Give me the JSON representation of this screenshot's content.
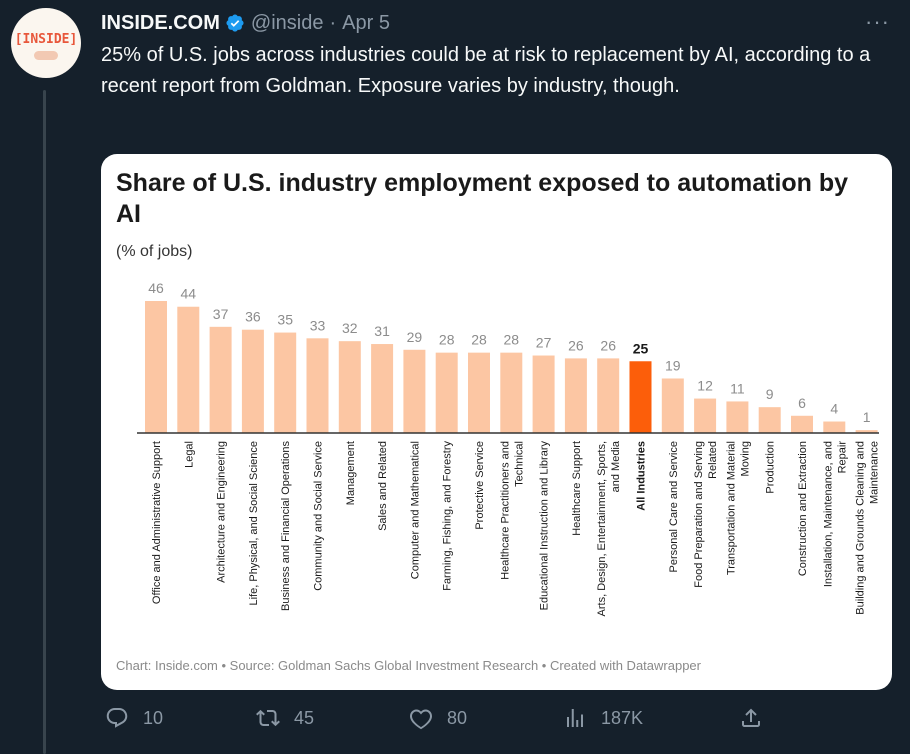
{
  "tweet": {
    "author_name": "INSIDE.COM",
    "handle": "@inside",
    "separator": "·",
    "date": "Apr 5",
    "avatar_text": "[INSIDE]",
    "more_label": "···",
    "text": "25% of U.S. jobs across industries could be at risk to replacement by AI, according to a recent report from Goldman. Exposure varies by industry, though."
  },
  "chart_data": {
    "type": "bar",
    "title": "Share of U.S. industry employment exposed to automation by AI",
    "subtitle": "(% of jobs)",
    "footer": "Chart: Inside.com • Source: Goldman Sachs Global Investment Research • Created with Datawrapper",
    "categories": [
      [
        "Office and Administrative Support"
      ],
      [
        "Legal"
      ],
      [
        "Architecture and Engineering"
      ],
      [
        "Life, Physical, and Social Science"
      ],
      [
        "Business and Financial Operations"
      ],
      [
        "Community and Social Service"
      ],
      [
        "Management"
      ],
      [
        "Sales and Related"
      ],
      [
        "Computer and Mathematical"
      ],
      [
        "Farming, Fishing, and Forestry"
      ],
      [
        "Protective Service"
      ],
      [
        "Healthcare Practitioners and",
        "Technical"
      ],
      [
        "Educational Instruction and Library"
      ],
      [
        "Healthcare Support"
      ],
      [
        "Arts, Design, Entertainment, Sports,",
        "and Media"
      ],
      [
        "All Industries"
      ],
      [
        "Personal Care and Service"
      ],
      [
        "Food Preparation and Serving",
        "Related"
      ],
      [
        "Transportation and Material",
        "Moving"
      ],
      [
        "Production"
      ],
      [
        "Construction and Extraction"
      ],
      [
        "Installation, Maintenance, and",
        "Repair"
      ],
      [
        "Building and Grounds Cleaning and",
        "Maintenance"
      ]
    ],
    "values": [
      46,
      44,
      37,
      36,
      35,
      33,
      32,
      31,
      29,
      28,
      28,
      28,
      27,
      26,
      26,
      25,
      19,
      12,
      11,
      9,
      6,
      4,
      1
    ],
    "highlight_index": 15,
    "ylim": [
      0,
      46
    ],
    "colors": {
      "bar": "#fcc6a3",
      "highlight": "#fc5e0a",
      "value_label": "#8c8c8c",
      "highlight_label": "#1a1a1a",
      "category_label": "#1a1a1a"
    }
  },
  "actions": {
    "replies": {
      "icon": "reply-icon",
      "count": "10"
    },
    "retweets": {
      "icon": "retweet-icon",
      "count": "45"
    },
    "likes": {
      "icon": "heart-icon",
      "count": "80"
    },
    "views": {
      "icon": "views-icon",
      "count": "187K"
    },
    "share": {
      "icon": "share-icon"
    }
  }
}
